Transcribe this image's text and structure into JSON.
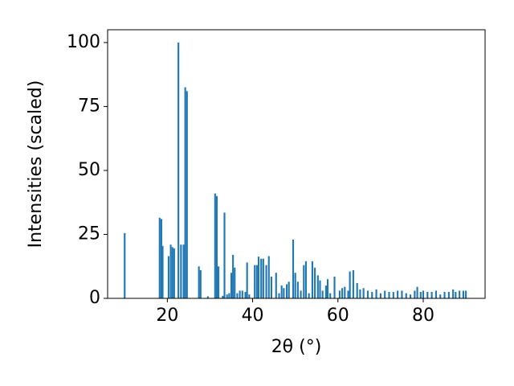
{
  "chart_data": {
    "type": "bar",
    "xlabel": "2θ (°)",
    "ylabel": "Intensities (scaled)",
    "color": "#1f77b4",
    "x": [
      10,
      18.2,
      18.6,
      18.9,
      20.3,
      20.8,
      21.2,
      21.6,
      22.6,
      23.2,
      23.8,
      24.2,
      24.6,
      27.4,
      27.8,
      29.5,
      31.2,
      31.6,
      32.0,
      33.0,
      33.4,
      34.0,
      34.5,
      35.0,
      35.4,
      35.8,
      36.4,
      37.0,
      37.6,
      38.3,
      38.7,
      39.2,
      40.5,
      41.0,
      41.4,
      42.0,
      42.5,
      43.2,
      43.8,
      44.4,
      45.5,
      46.2,
      46.8,
      47.3,
      48.0,
      48.5,
      49.5,
      50.0,
      50.6,
      51.3,
      52.0,
      52.5,
      53.2,
      54.0,
      54.6,
      55.3,
      55.8,
      56.4,
      57.2,
      57.6,
      58.2,
      59.2,
      60.4,
      61.0,
      61.6,
      62.4,
      62.8,
      63.6,
      64.5,
      65.2,
      66,
      67,
      68,
      69,
      70,
      71,
      72,
      73,
      74,
      75,
      76,
      77,
      78,
      78.6,
      79.4,
      80,
      81,
      82,
      83,
      84,
      85,
      86,
      87,
      87.6,
      88.5,
      89.4,
      90
    ],
    "values": [
      25.5,
      31.5,
      31,
      20.5,
      16.5,
      21,
      20,
      19.5,
      100,
      21,
      21,
      82.5,
      81,
      12.5,
      11,
      0.8,
      41,
      40,
      12.5,
      1,
      33.5,
      1.5,
      2,
      10,
      17,
      12,
      2,
      3,
      3,
      2.5,
      14,
      1.5,
      13,
      13,
      16.3,
      15.5,
      15.5,
      13,
      16.5,
      8.5,
      10,
      2,
      5,
      4,
      5.5,
      6.5,
      23,
      10,
      6.5,
      3,
      13,
      14.5,
      2,
      14.5,
      12,
      9,
      7,
      3,
      5,
      7.5,
      2,
      8.5,
      3,
      4,
      4.5,
      3,
      10.5,
      11,
      6,
      3.5,
      4,
      3,
      2.5,
      3.5,
      2,
      3,
      2.5,
      2.5,
      3,
      3,
      2,
      1.5,
      3,
      4.5,
      2.5,
      3,
      2.5,
      2.5,
      3,
      1.5,
      2.5,
      2.5,
      3.5,
      2.5,
      3,
      3,
      3
    ],
    "xlim": [
      6,
      94.5
    ],
    "xticks": [
      20,
      40,
      60,
      80
    ],
    "ylim": [
      0,
      105
    ],
    "yticks": [
      0,
      25,
      50,
      75,
      100
    ]
  }
}
